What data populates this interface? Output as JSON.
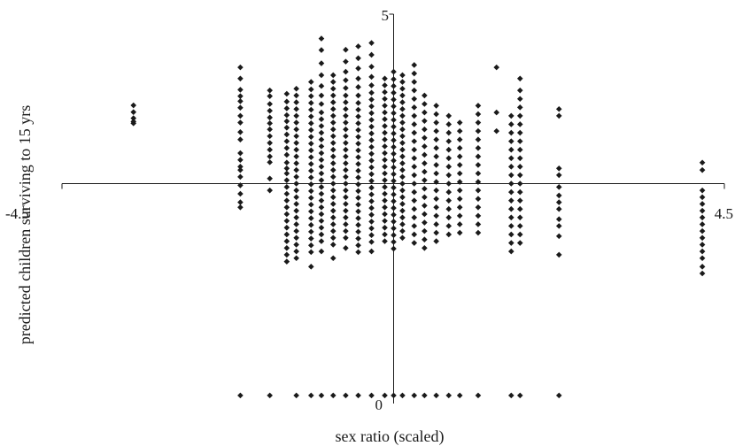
{
  "chart_data": {
    "type": "scatter",
    "title": "",
    "xlabel": "sex ratio (scaled)",
    "ylabel": "predicted children surviving to 15 yrs",
    "xlim": [
      -4.5,
      4.5
    ],
    "ylim": [
      0,
      5
    ],
    "x_tick_labels": [
      "-4.5",
      "4.5"
    ],
    "y_tick_labels": [
      "5",
      "0"
    ],
    "grid": false,
    "legend": "none",
    "marker": "diamond",
    "marker_color": "#1a1a1a",
    "columns": [
      {
        "x": -3.53,
        "y": [
          2.31,
          2.11,
          1.93,
          1.83,
          1.78
        ]
      },
      {
        "x": -2.08,
        "y": [
          3.43,
          3.1,
          2.77,
          2.58,
          2.43,
          2.24,
          2.0,
          1.8,
          1.52,
          1.3,
          0.9,
          0.7,
          0.5,
          0.4,
          0.2,
          -0.05,
          -0.3,
          -0.55,
          -0.7,
          -6.25
        ]
      },
      {
        "x": -1.68,
        "y": [
          2.75,
          2.58,
          2.35,
          2.15,
          1.95,
          1.78,
          1.6,
          1.4,
          1.2,
          1.0,
          0.8,
          0.63,
          0.15,
          -0.2,
          -6.25
        ]
      },
      {
        "x": -1.45,
        "y": [
          2.65,
          2.42,
          2.22,
          2.02,
          1.84,
          1.65,
          1.45,
          1.25,
          1.05,
          0.85,
          0.62,
          0.45,
          0.3,
          0.1,
          -0.1,
          -0.3,
          -0.5,
          -0.7,
          -0.9,
          -1.1,
          -1.3,
          -1.5,
          -1.7,
          -1.9,
          -2.1,
          -2.3
        ]
      },
      {
        "x": -1.32,
        "y": [
          2.8,
          2.6,
          2.4,
          2.2,
          2.0,
          1.8,
          1.6,
          1.4,
          1.2,
          1.0,
          0.8,
          0.6,
          0.4,
          0.2,
          0.0,
          -0.2,
          -0.4,
          -0.6,
          -0.8,
          -1.0,
          -1.2,
          -1.4,
          -1.6,
          -1.8,
          -2.0,
          -2.2,
          -6.25
        ]
      },
      {
        "x": -1.12,
        "y": [
          3.0,
          2.78,
          2.58,
          2.38,
          2.18,
          1.98,
          1.78,
          1.58,
          1.38,
          1.18,
          0.98,
          0.78,
          0.58,
          0.38,
          0.18,
          -0.02,
          -0.22,
          -0.42,
          -0.62,
          -0.82,
          -1.02,
          -1.22,
          -1.42,
          -1.62,
          -1.82,
          -2.02,
          -2.45,
          -6.25
        ]
      },
      {
        "x": -0.98,
        "y": [
          4.28,
          3.94,
          3.55,
          3.2,
          2.88,
          2.6,
          2.35,
          2.1,
          1.9,
          1.7,
          1.5,
          1.3,
          1.1,
          0.9,
          0.7,
          0.5,
          0.3,
          0.1,
          -0.1,
          -0.3,
          -0.5,
          -0.7,
          -0.9,
          -1.1,
          -1.3,
          -1.5,
          -1.7,
          -2.0,
          -6.25
        ]
      },
      {
        "x": -0.82,
        "y": [
          3.2,
          3.0,
          2.8,
          2.6,
          2.4,
          2.2,
          2.0,
          1.8,
          1.6,
          1.4,
          1.2,
          1.0,
          0.8,
          0.6,
          0.4,
          0.2,
          0.0,
          -0.2,
          -0.4,
          -0.6,
          -0.8,
          -1.0,
          -1.2,
          -1.4,
          -1.6,
          -1.8,
          -2.2,
          -6.25
        ]
      },
      {
        "x": -0.65,
        "y": [
          3.95,
          3.6,
          3.3,
          3.05,
          2.82,
          2.6,
          2.4,
          2.2,
          2.0,
          1.8,
          1.6,
          1.4,
          1.2,
          1.0,
          0.8,
          0.6,
          0.4,
          0.2,
          0.0,
          -0.2,
          -0.4,
          -0.6,
          -0.8,
          -1.0,
          -1.2,
          -1.4,
          -1.6,
          -1.9,
          -6.25
        ]
      },
      {
        "x": -0.48,
        "y": [
          4.05,
          3.7,
          3.4,
          3.1,
          2.85,
          2.6,
          2.38,
          2.18,
          1.98,
          1.78,
          1.58,
          1.38,
          1.18,
          0.98,
          0.78,
          0.58,
          0.38,
          0.18,
          -0.02,
          -0.22,
          -0.42,
          -0.62,
          -0.82,
          -1.02,
          -1.22,
          -1.42,
          -1.62,
          -1.82,
          -2.02,
          -6.25
        ]
      },
      {
        "x": -0.3,
        "y": [
          4.15,
          3.8,
          3.45,
          3.15,
          2.9,
          2.68,
          2.48,
          2.28,
          2.08,
          1.88,
          1.68,
          1.48,
          1.28,
          1.08,
          0.88,
          0.68,
          0.48,
          0.28,
          0.08,
          -0.12,
          -0.32,
          -0.52,
          -0.72,
          -0.92,
          -1.12,
          -1.32,
          -1.52,
          -1.72,
          -2.0,
          -6.25
        ]
      },
      {
        "x": -0.12,
        "y": [
          3.1,
          2.9,
          2.7,
          2.5,
          2.3,
          2.1,
          1.9,
          1.7,
          1.5,
          1.3,
          1.1,
          0.9,
          0.7,
          0.5,
          0.3,
          0.1,
          -0.1,
          -0.3,
          -0.5,
          -0.7,
          -0.9,
          -1.1,
          -1.3,
          -1.5,
          -1.7,
          -6.25
        ]
      },
      {
        "x": 0.0,
        "y": [
          3.3,
          3.08,
          2.88,
          2.68,
          2.48,
          2.28,
          2.08,
          1.88,
          1.68,
          1.48,
          1.28,
          1.08,
          0.88,
          0.68,
          0.48,
          0.28,
          0.08,
          -0.12,
          -0.32,
          -0.52,
          -0.72,
          -0.92,
          -1.12,
          -1.32,
          -1.52,
          -1.72,
          -1.92,
          -6.25
        ]
      },
      {
        "x": 0.12,
        "y": [
          3.2,
          3.0,
          2.8,
          2.6,
          2.4,
          2.2,
          2.0,
          1.8,
          1.6,
          1.4,
          1.2,
          1.0,
          0.8,
          0.6,
          0.4,
          0.2,
          0.0,
          -0.2,
          -0.4,
          -0.6,
          -0.8,
          -1.0,
          -1.2,
          -1.4,
          -1.6,
          -6.25
        ]
      },
      {
        "x": 0.28,
        "y": [
          3.5,
          3.25,
          3.0,
          2.75,
          2.5,
          2.25,
          2.0,
          1.75,
          1.5,
          1.25,
          1.0,
          0.75,
          0.5,
          0.25,
          0.0,
          -0.25,
          -0.5,
          -0.75,
          -1.0,
          -1.25,
          -1.5,
          -1.75,
          -6.25
        ]
      },
      {
        "x": 0.42,
        "y": [
          2.6,
          2.35,
          2.1,
          1.85,
          1.6,
          1.35,
          1.1,
          0.85,
          0.6,
          0.35,
          0.1,
          -0.15,
          -0.4,
          -0.65,
          -0.9,
          -1.15,
          -1.4,
          -1.65,
          -1.9,
          -6.25
        ]
      },
      {
        "x": 0.58,
        "y": [
          2.3,
          2.05,
          1.8,
          1.55,
          1.3,
          1.05,
          0.8,
          0.55,
          0.3,
          0.05,
          -0.2,
          -0.45,
          -0.7,
          -0.95,
          -1.2,
          -1.45,
          -1.7,
          -6.25
        ]
      },
      {
        "x": 0.75,
        "y": [
          2.0,
          1.75,
          1.5,
          1.25,
          1.0,
          0.75,
          0.5,
          0.25,
          0.0,
          -0.25,
          -0.5,
          -0.75,
          -1.0,
          -1.25,
          -1.5,
          -6.25
        ]
      },
      {
        "x": 0.9,
        "y": [
          1.8,
          1.55,
          1.3,
          1.05,
          0.8,
          0.55,
          0.3,
          0.05,
          -0.2,
          -0.45,
          -0.7,
          -0.95,
          -1.2,
          -1.45,
          -6.25
        ]
      },
      {
        "x": 1.15,
        "y": [
          2.3,
          2.05,
          1.8,
          1.55,
          1.3,
          1.05,
          0.8,
          0.55,
          0.3,
          0.05,
          -0.2,
          -0.45,
          -0.7,
          -0.95,
          -1.2,
          -1.45,
          -6.25
        ]
      },
      {
        "x": 1.4,
        "y": [
          3.43,
          2.1,
          1.55
        ]
      },
      {
        "x": 1.6,
        "y": [
          2.0,
          1.75,
          1.5,
          1.25,
          1.0,
          0.75,
          0.5,
          0.25,
          0.0,
          -0.25,
          -0.5,
          -0.75,
          -1.0,
          -1.25,
          -1.5,
          -1.75,
          -2.0,
          -6.25
        ]
      },
      {
        "x": 1.72,
        "y": [
          3.1,
          2.75,
          2.5,
          2.25,
          2.0,
          1.75,
          1.5,
          1.25,
          1.0,
          0.75,
          0.5,
          0.25,
          0.0,
          -0.25,
          -0.5,
          -0.75,
          -1.0,
          -1.25,
          -1.5,
          -1.75,
          -6.25
        ]
      },
      {
        "x": 2.25,
        "y": [
          2.2,
          2.0,
          0.45,
          0.25,
          -0.1,
          -0.35,
          -0.55,
          -0.75,
          -1.05,
          -1.25,
          -1.55,
          -2.1,
          -6.25
        ]
      },
      {
        "x": 4.2,
        "y": [
          0.62,
          0.4,
          -0.2,
          -0.4,
          -0.6,
          -0.8,
          -1.0,
          -1.2,
          -1.4,
          -1.6,
          -1.8,
          -2.0,
          -2.2,
          -2.45,
          -2.65
        ]
      }
    ]
  }
}
